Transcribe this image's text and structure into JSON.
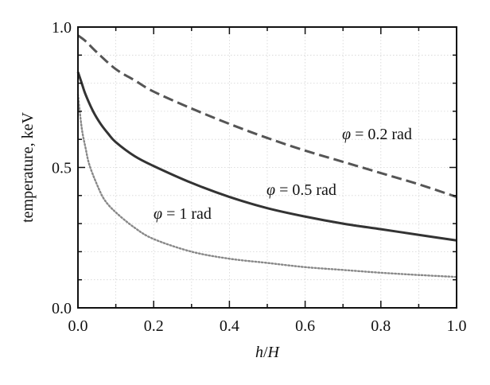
{
  "chart_data": {
    "type": "line",
    "xlabel_parts": {
      "num": "h",
      "slash": "/",
      "den": "H"
    },
    "ylabel": "temperature, keV",
    "xlim": [
      0,
      1
    ],
    "ylim": [
      0,
      1
    ],
    "x_ticks": [
      {
        "value": 0.0,
        "label": "0.0"
      },
      {
        "value": 0.2,
        "label": "0.2"
      },
      {
        "value": 0.4,
        "label": "0.4"
      },
      {
        "value": 0.6,
        "label": "0.6"
      },
      {
        "value": 0.8,
        "label": "0.8"
      },
      {
        "value": 1.0,
        "label": "1.0"
      }
    ],
    "y_ticks": [
      {
        "value": 0.0,
        "label": "0.0"
      },
      {
        "value": 0.5,
        "label": "0.5"
      },
      {
        "value": 1.0,
        "label": "1.0"
      }
    ],
    "x_minor_ticks": [
      0.1,
      0.3,
      0.5,
      0.7,
      0.9
    ],
    "y_minor_ticks": [
      0.1,
      0.2,
      0.3,
      0.4,
      0.6,
      0.7,
      0.8,
      0.9
    ],
    "grid": true,
    "series": [
      {
        "label_symbol": "φ",
        "label_text": " = 0.2 rad",
        "color": "#555555",
        "style": "dashed",
        "x": [
          0.0,
          0.02,
          0.05,
          0.1,
          0.15,
          0.2,
          0.3,
          0.4,
          0.5,
          0.6,
          0.7,
          0.8,
          0.9,
          1.0
        ],
        "y": [
          0.97,
          0.95,
          0.91,
          0.85,
          0.81,
          0.77,
          0.71,
          0.655,
          0.605,
          0.56,
          0.52,
          0.48,
          0.44,
          0.395
        ]
      },
      {
        "label_symbol": "φ",
        "label_text": " = 0.5 rad",
        "color": "#333333",
        "style": "solid",
        "x": [
          0.0,
          0.01,
          0.02,
          0.04,
          0.06,
          0.08,
          0.1,
          0.15,
          0.2,
          0.3,
          0.4,
          0.5,
          0.6,
          0.7,
          0.8,
          0.9,
          1.0
        ],
        "y": [
          0.84,
          0.8,
          0.76,
          0.7,
          0.655,
          0.62,
          0.59,
          0.54,
          0.505,
          0.445,
          0.395,
          0.355,
          0.325,
          0.3,
          0.28,
          0.26,
          0.24
        ]
      },
      {
        "label_symbol": "φ",
        "label_text": " = 1 rad",
        "color": "#888888",
        "style": "dotted",
        "x": [
          0.0,
          0.01,
          0.02,
          0.03,
          0.05,
          0.07,
          0.1,
          0.15,
          0.2,
          0.3,
          0.4,
          0.5,
          0.6,
          0.7,
          0.8,
          0.9,
          1.0
        ],
        "y": [
          0.76,
          0.64,
          0.57,
          0.51,
          0.44,
          0.385,
          0.34,
          0.285,
          0.245,
          0.2,
          0.175,
          0.16,
          0.145,
          0.135,
          0.125,
          0.117,
          0.11
        ]
      }
    ]
  }
}
